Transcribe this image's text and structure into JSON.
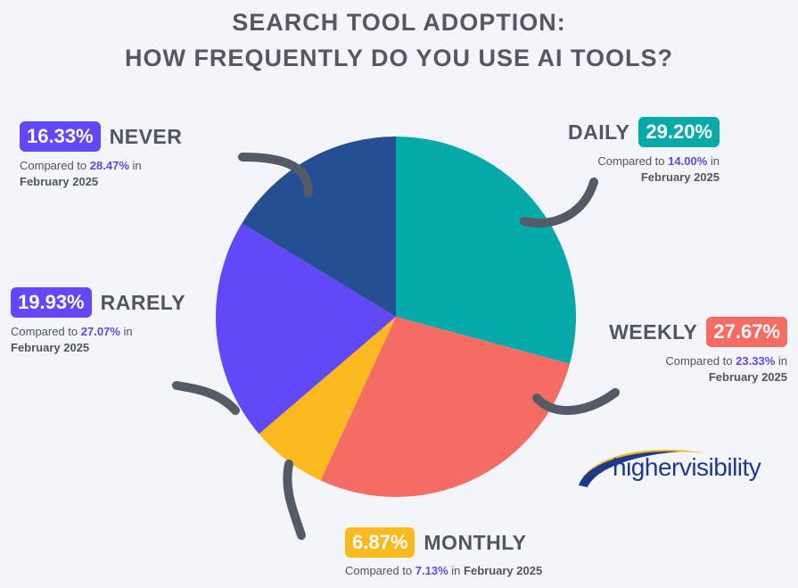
{
  "title_line_1": "SEARCH TOOL ADOPTION:",
  "title_line_2": "HOW FREQUENTLY DO YOU USE AI TOOLS?",
  "chart_data": {
    "type": "pie",
    "slices": [
      {
        "label": "DAILY",
        "value": 29.2,
        "value_text": "29.20%",
        "previous": "14.00%",
        "color": "#03aaa9"
      },
      {
        "label": "WEEKLY",
        "value": 27.67,
        "value_text": "27.67%",
        "previous": "23.33%",
        "color": "#f56c63"
      },
      {
        "label": "MONTHLY",
        "value": 6.87,
        "value_text": "6.87%",
        "previous": "7.13%",
        "color": "#fbb920"
      },
      {
        "label": "RARELY",
        "value": 19.93,
        "value_text": "19.93%",
        "previous": "27.07%",
        "color": "#6148f9"
      },
      {
        "label": "NEVER",
        "value": 16.33,
        "value_text": "16.33%",
        "previous": "28.47%",
        "color": "#244f93"
      }
    ],
    "start_angle_deg": 0,
    "direction": "clockwise"
  },
  "compare_prefix": "Compared to",
  "compare_suffix": "in",
  "compare_period": "February 2025",
  "arrow_color": "#555a67",
  "logo": {
    "text": "highervisibility",
    "colors": [
      "#1e3a8a",
      "#f2b51c"
    ]
  }
}
